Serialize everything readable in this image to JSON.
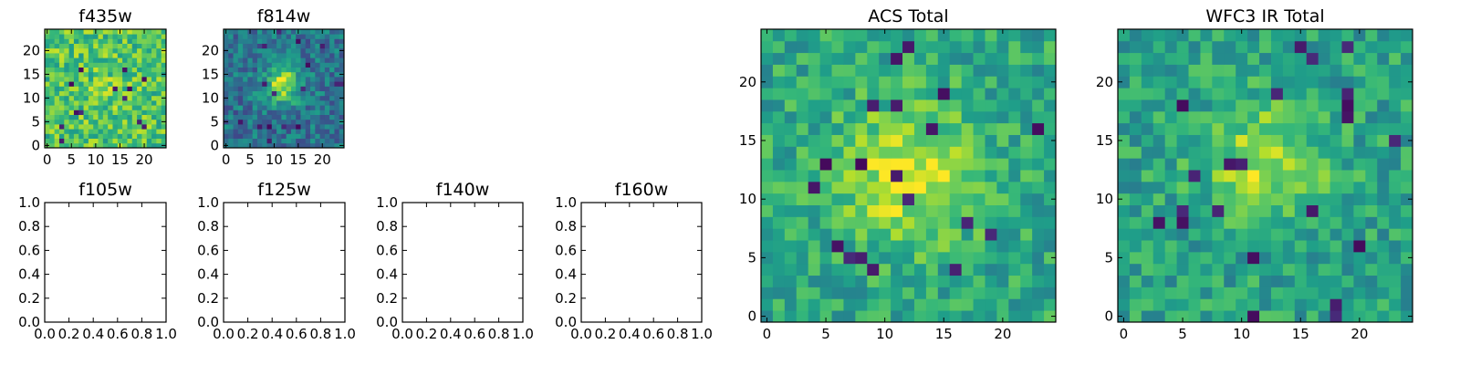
{
  "chart_data": [
    {
      "type": "heatmap",
      "title": "f435w",
      "xticks": [
        0,
        5,
        10,
        15,
        20
      ],
      "yticks": [
        0,
        5,
        10,
        15,
        20
      ],
      "xlim": [
        -0.5,
        24.5
      ],
      "ylim": [
        -0.5,
        24.5
      ],
      "grid_size": 25,
      "colormap": "viridis",
      "pattern": "noisy, mostly green-yellow, no obvious central source"
    },
    {
      "type": "heatmap",
      "title": "f814w",
      "xticks": [
        0,
        5,
        10,
        15,
        20
      ],
      "yticks": [
        0,
        5,
        10,
        15,
        20
      ],
      "xlim": [
        -0.5,
        24.5
      ],
      "ylim": [
        -0.5,
        24.5
      ],
      "grid_size": 25,
      "colormap": "viridis",
      "pattern": "bright yellow blob near center (x~12, y~13) on blue-green background"
    },
    {
      "type": "empty",
      "title": "f105w",
      "xticks": [
        "0.0",
        "0.2",
        "0.4",
        "0.6",
        "0.8",
        "1.0"
      ],
      "yticks": [
        "0.0",
        "0.2",
        "0.4",
        "0.6",
        "0.8",
        "1.0"
      ],
      "xlim": [
        0,
        1
      ],
      "ylim": [
        0,
        1
      ]
    },
    {
      "type": "empty",
      "title": "f125w",
      "xticks": [
        "0.0",
        "0.2",
        "0.4",
        "0.6",
        "0.8",
        "1.0"
      ],
      "yticks": [
        "0.0",
        "0.2",
        "0.4",
        "0.6",
        "0.8",
        "1.0"
      ],
      "xlim": [
        0,
        1
      ],
      "ylim": [
        0,
        1
      ]
    },
    {
      "type": "empty",
      "title": "f140w",
      "xticks": [
        "0.0",
        "0.2",
        "0.4",
        "0.6",
        "0.8",
        "1.0"
      ],
      "yticks": [
        "0.0",
        "0.2",
        "0.4",
        "0.6",
        "0.8",
        "1.0"
      ],
      "xlim": [
        0,
        1
      ],
      "ylim": [
        0,
        1
      ]
    },
    {
      "type": "empty",
      "title": "f160w",
      "xticks": [
        "0.0",
        "0.2",
        "0.4",
        "0.6",
        "0.8",
        "1.0"
      ],
      "yticks": [
        "0.0",
        "0.2",
        "0.4",
        "0.6",
        "0.8",
        "1.0"
      ],
      "xlim": [
        0,
        1
      ],
      "ylim": [
        0,
        1
      ]
    },
    {
      "type": "heatmap",
      "title": "ACS Total",
      "xticks": [
        0,
        5,
        10,
        15,
        20
      ],
      "yticks": [
        0,
        5,
        10,
        15,
        20
      ],
      "xlim": [
        -0.5,
        24.5
      ],
      "ylim": [
        -0.5,
        24.5
      ],
      "grid_size": 25,
      "colormap": "viridis",
      "pattern": "yellow concentration near center (x~12, y~12) with noisy green background"
    },
    {
      "type": "heatmap",
      "title": "WFC3 IR Total",
      "xticks": [
        0,
        5,
        10,
        15,
        20
      ],
      "yticks": [
        0,
        5,
        10,
        15,
        20
      ],
      "xlim": [
        -0.5,
        24.5
      ],
      "ylim": [
        -0.5,
        24.5
      ],
      "grid_size": 25,
      "colormap": "viridis",
      "pattern": "yellow concentration near center (x~12, y~13) with noisy green background"
    }
  ]
}
